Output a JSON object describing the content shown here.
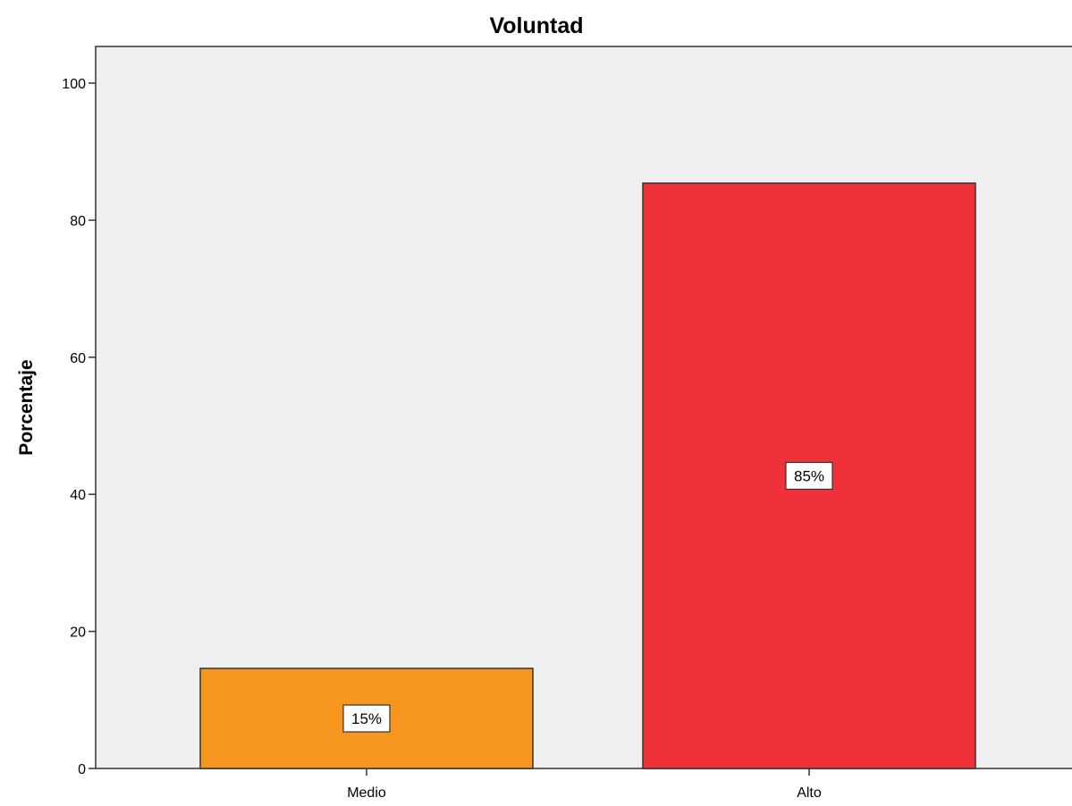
{
  "chart_data": {
    "type": "bar",
    "title": "Voluntad",
    "xlabel": "",
    "ylabel": "Porcentaje",
    "categories": [
      "Medio",
      "Alto"
    ],
    "values": [
      14.6,
      85.4
    ],
    "data_labels": [
      "15%",
      "85%"
    ],
    "bar_colors": [
      "#f7961e",
      "#ef323a"
    ],
    "ylim": [
      0,
      105
    ],
    "yticks": [
      0,
      20,
      40,
      60,
      80,
      100
    ],
    "ytick_labels": [
      "0",
      "20",
      "40",
      "60",
      "80",
      "100"
    ],
    "grid": false,
    "legend": "none",
    "plot_background": "#efefef"
  }
}
